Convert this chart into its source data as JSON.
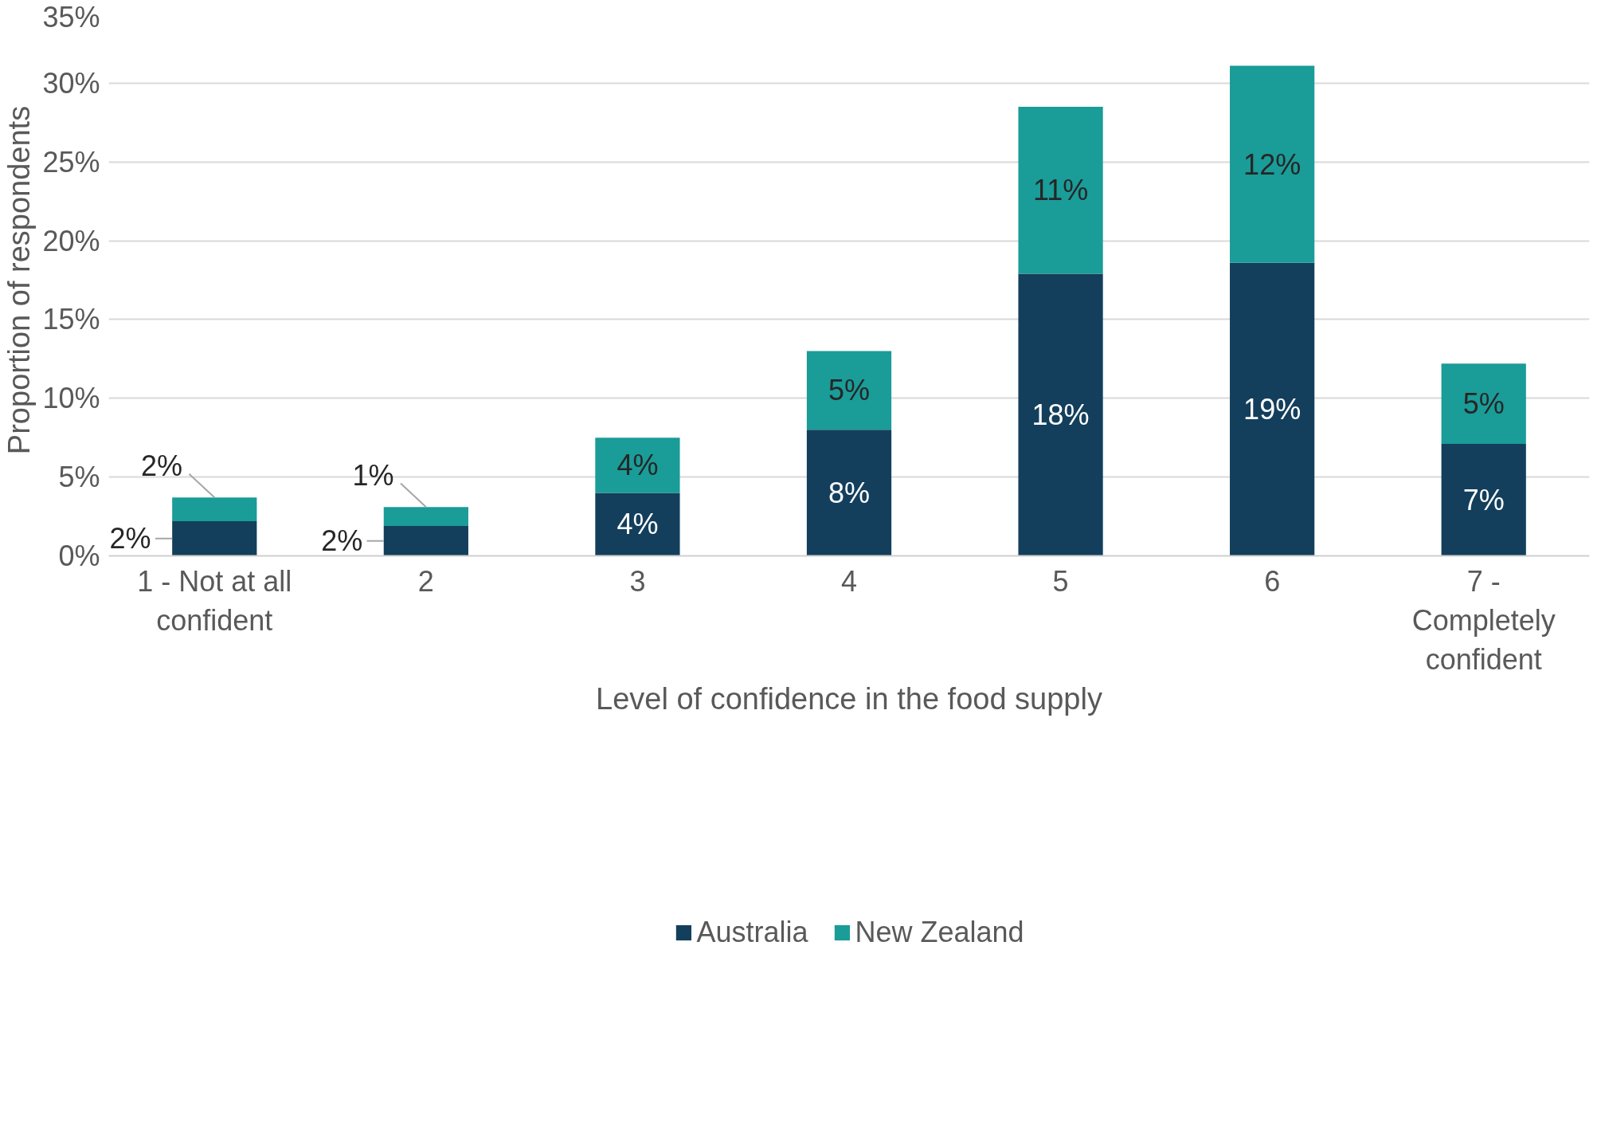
{
  "chart_data": {
    "type": "bar",
    "stacked": true,
    "xlabel": "Level of confidence in the food supply",
    "ylabel": "Proportion of respondents",
    "categories": [
      "1 - Not at all\nconfident",
      "2",
      "3",
      "4",
      "5",
      "6",
      "7 -\nCompletely\nconfident"
    ],
    "series": [
      {
        "name": "Australia",
        "color": "#133f5c",
        "values": [
          2.2,
          1.9,
          4.0,
          8.0,
          17.9,
          18.6,
          7.1
        ],
        "value_labels": [
          "2%",
          "2%",
          "4%",
          "8%",
          "18%",
          "19%",
          "7%"
        ]
      },
      {
        "name": "New Zealand",
        "color": "#1a9c98",
        "values": [
          1.5,
          1.2,
          3.5,
          5.0,
          10.6,
          12.5,
          5.1
        ],
        "value_labels": [
          "2%",
          "1%",
          "4%",
          "5%",
          "11%",
          "12%",
          "5%"
        ]
      }
    ],
    "ylim": [
      0,
      35
    ],
    "yticks": [
      {
        "value": 0,
        "label": "0%"
      },
      {
        "value": 5,
        "label": "5%"
      },
      {
        "value": 10,
        "label": "10%"
      },
      {
        "value": 15,
        "label": "15%"
      },
      {
        "value": 20,
        "label": "20%"
      },
      {
        "value": 25,
        "label": "25%"
      },
      {
        "value": 30,
        "label": "30%"
      },
      {
        "value": 35,
        "label": "35%"
      }
    ],
    "grid": "y",
    "legend": "bottom"
  }
}
